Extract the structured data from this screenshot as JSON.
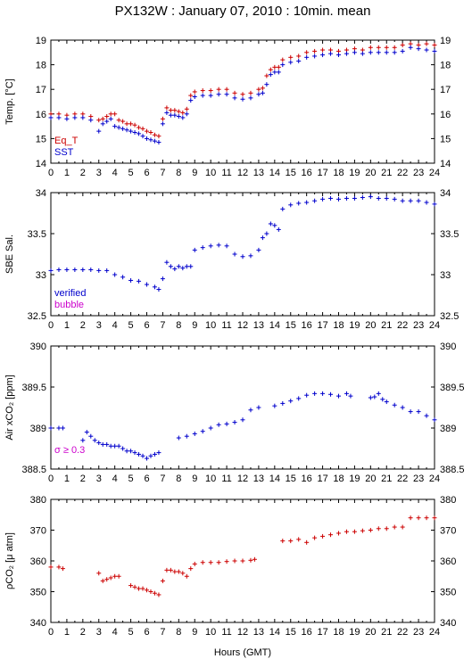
{
  "title": "PX132W : January 07, 2010 : 10min. mean",
  "x_axis_label": "Hours (GMT)",
  "colors": {
    "eq_t": "#cc0000",
    "sst": "#0000cc",
    "verified": "#0000cc",
    "bubble": "#cc00cc",
    "pco2": "#cc0000",
    "sigma": "#cc00cc"
  },
  "chart_data": [
    {
      "type": "scatter",
      "id": "temp",
      "ylabel": "Temp. [°C]",
      "xlim": [
        0,
        24
      ],
      "ylim": [
        14,
        19
      ],
      "yticks": [
        14,
        15,
        16,
        17,
        18,
        19
      ],
      "xticks": [
        0,
        1,
        2,
        3,
        4,
        5,
        6,
        7,
        8,
        9,
        10,
        11,
        12,
        13,
        14,
        15,
        16,
        17,
        18,
        19,
        20,
        21,
        22,
        23,
        24
      ],
      "legend": [
        "Eq_T",
        "SST"
      ],
      "legend_position": "bottom-left",
      "series": [
        {
          "name": "Eq_T",
          "color": "#cc0000",
          "x": [
            0.0,
            0.5,
            1.0,
            1.5,
            2.0,
            2.5,
            3.0,
            3.25,
            3.5,
            3.75,
            4.0,
            4.25,
            4.5,
            4.75,
            5.0,
            5.25,
            5.5,
            5.75,
            6.0,
            6.25,
            6.5,
            6.75,
            7.0,
            7.25,
            7.5,
            7.75,
            8.0,
            8.25,
            8.5,
            8.75,
            9.0,
            9.5,
            10.0,
            10.5,
            11.0,
            11.5,
            12.0,
            12.5,
            13.0,
            13.25,
            13.5,
            13.75,
            14.0,
            14.25,
            14.5,
            15.0,
            15.5,
            16.0,
            16.5,
            17.0,
            17.5,
            18.0,
            18.5,
            19.0,
            19.5,
            20.0,
            20.5,
            21.0,
            21.5,
            22.0,
            22.5,
            23.0,
            23.5,
            24.0
          ],
          "y": [
            16.0,
            16.0,
            15.95,
            16.0,
            16.0,
            15.9,
            15.75,
            15.8,
            15.9,
            16.0,
            16.0,
            15.75,
            15.7,
            15.6,
            15.6,
            15.55,
            15.45,
            15.4,
            15.3,
            15.25,
            15.15,
            15.1,
            15.8,
            16.25,
            16.15,
            16.15,
            16.1,
            16.05,
            16.2,
            16.75,
            16.9,
            16.95,
            16.95,
            17.0,
            17.0,
            16.85,
            16.8,
            16.85,
            17.0,
            17.05,
            17.55,
            17.8,
            17.9,
            17.9,
            18.2,
            18.3,
            18.35,
            18.5,
            18.55,
            18.6,
            18.6,
            18.55,
            18.6,
            18.65,
            18.6,
            18.7,
            18.7,
            18.7,
            18.7,
            18.8,
            18.85,
            18.8,
            18.85,
            18.8
          ]
        },
        {
          "name": "SST",
          "color": "#0000cc",
          "x": [
            0.0,
            0.5,
            1.0,
            1.5,
            2.0,
            2.5,
            3.0,
            3.25,
            3.5,
            3.75,
            4.0,
            4.25,
            4.5,
            4.75,
            5.0,
            5.25,
            5.5,
            5.75,
            6.0,
            6.25,
            6.5,
            6.75,
            7.0,
            7.25,
            7.5,
            7.75,
            8.0,
            8.25,
            8.5,
            8.75,
            9.0,
            9.5,
            10.0,
            10.5,
            11.0,
            11.5,
            12.0,
            12.5,
            13.0,
            13.25,
            13.5,
            13.75,
            14.0,
            14.25,
            14.5,
            15.0,
            15.5,
            16.0,
            16.5,
            17.0,
            17.5,
            18.0,
            18.5,
            19.0,
            19.5,
            20.0,
            20.5,
            21.0,
            21.5,
            22.0,
            22.5,
            23.0,
            23.5,
            24.0
          ],
          "y": [
            15.85,
            15.85,
            15.8,
            15.85,
            15.85,
            15.75,
            15.3,
            15.6,
            15.7,
            15.8,
            15.5,
            15.45,
            15.4,
            15.35,
            15.3,
            15.25,
            15.2,
            15.1,
            15.0,
            14.95,
            14.9,
            14.85,
            15.6,
            16.05,
            15.95,
            15.95,
            15.9,
            15.85,
            16.0,
            16.55,
            16.7,
            16.75,
            16.75,
            16.8,
            16.8,
            16.65,
            16.6,
            16.65,
            16.8,
            16.85,
            17.2,
            17.6,
            17.7,
            17.7,
            18.0,
            18.1,
            18.15,
            18.3,
            18.35,
            18.4,
            18.45,
            18.4,
            18.45,
            18.5,
            18.45,
            18.5,
            18.5,
            18.5,
            18.5,
            18.55,
            18.7,
            18.65,
            18.6,
            18.55
          ]
        }
      ]
    },
    {
      "type": "scatter",
      "id": "sal",
      "ylabel": "SBE Sal.",
      "xlim": [
        0,
        24
      ],
      "ylim": [
        32.5,
        34
      ],
      "yticks": [
        32.5,
        33,
        33.5,
        34
      ],
      "xticks": [
        0,
        1,
        2,
        3,
        4,
        5,
        6,
        7,
        8,
        9,
        10,
        11,
        12,
        13,
        14,
        15,
        16,
        17,
        18,
        19,
        20,
        21,
        22,
        23,
        24
      ],
      "legend": [
        "verified",
        "bubble"
      ],
      "legend_position": "bottom-left",
      "series": [
        {
          "name": "verified",
          "color": "#0000cc",
          "x": [
            0.0,
            0.5,
            1.0,
            1.5,
            2.0,
            2.5,
            3.0,
            3.5,
            4.0,
            4.5,
            5.0,
            5.5,
            6.0,
            6.5,
            6.75,
            7.0,
            7.25,
            7.5,
            7.75,
            8.0,
            8.25,
            8.5,
            8.75,
            9.0,
            9.5,
            10.0,
            10.5,
            11.0,
            11.5,
            12.0,
            12.5,
            13.0,
            13.25,
            13.5,
            13.75,
            14.0,
            14.25,
            14.5,
            15.0,
            15.5,
            16.0,
            16.5,
            17.0,
            17.5,
            18.0,
            18.5,
            19.0,
            19.5,
            20.0,
            20.5,
            21.0,
            21.5,
            22.0,
            22.5,
            23.0,
            23.5,
            24.0
          ],
          "y": [
            33.05,
            33.06,
            33.06,
            33.06,
            33.06,
            33.06,
            33.05,
            33.05,
            33.0,
            32.97,
            32.93,
            32.92,
            32.88,
            32.85,
            32.82,
            32.95,
            33.15,
            33.1,
            33.07,
            33.1,
            33.08,
            33.1,
            33.1,
            33.3,
            33.33,
            33.35,
            33.36,
            33.35,
            33.25,
            33.22,
            33.23,
            33.3,
            33.45,
            33.5,
            33.62,
            33.6,
            33.55,
            33.8,
            33.85,
            33.87,
            33.88,
            33.9,
            33.92,
            33.93,
            33.92,
            33.93,
            33.93,
            33.94,
            33.95,
            33.93,
            33.93,
            33.92,
            33.9,
            33.9,
            33.9,
            33.88,
            33.86
          ]
        },
        {
          "name": "bubble",
          "color": "#cc00cc",
          "x": [],
          "y": []
        }
      ]
    },
    {
      "type": "scatter",
      "id": "air",
      "ylabel": "Air xCO₂ [ppm]",
      "xlim": [
        0,
        24
      ],
      "ylim": [
        388.5,
        390
      ],
      "yticks": [
        388.5,
        389,
        389.5,
        390
      ],
      "xticks": [
        0,
        1,
        2,
        3,
        4,
        5,
        6,
        7,
        8,
        9,
        10,
        11,
        12,
        13,
        14,
        15,
        16,
        17,
        18,
        19,
        20,
        21,
        22,
        23,
        24
      ],
      "annotation": "σ ≥ 0.3",
      "series": [
        {
          "name": "Air xCO2",
          "color": "#0000cc",
          "x": [
            0.0,
            0.5,
            0.75,
            2.0,
            2.25,
            2.5,
            2.75,
            3.0,
            3.25,
            3.5,
            3.75,
            4.0,
            4.25,
            4.5,
            4.75,
            5.0,
            5.25,
            5.5,
            5.75,
            6.0,
            6.25,
            6.5,
            6.75,
            8.0,
            8.5,
            9.0,
            9.5,
            10.0,
            10.5,
            11.0,
            11.5,
            12.0,
            12.5,
            13.0,
            14.0,
            14.5,
            15.0,
            15.5,
            16.0,
            16.5,
            17.0,
            17.5,
            18.0,
            18.5,
            18.75,
            20.0,
            20.25,
            20.5,
            20.75,
            21.0,
            21.5,
            22.0,
            22.5,
            23.0,
            23.5,
            24.0
          ],
          "y": [
            389.0,
            389.0,
            389.0,
            388.85,
            388.95,
            388.9,
            388.85,
            388.82,
            388.8,
            388.8,
            388.78,
            388.78,
            388.78,
            388.75,
            388.72,
            388.72,
            388.7,
            388.68,
            388.66,
            388.63,
            388.66,
            388.68,
            388.7,
            388.88,
            388.9,
            388.93,
            388.96,
            389.0,
            389.04,
            389.05,
            389.07,
            389.1,
            389.22,
            389.25,
            389.27,
            389.3,
            389.33,
            389.36,
            389.4,
            389.42,
            389.42,
            389.41,
            389.39,
            389.42,
            389.39,
            389.37,
            389.38,
            389.42,
            389.35,
            389.32,
            389.28,
            389.25,
            389.2,
            389.2,
            389.15,
            389.1
          ]
        }
      ]
    },
    {
      "type": "scatter",
      "id": "pco2",
      "ylabel": "ρCO₂ [μ atm]",
      "xlim": [
        0,
        24
      ],
      "ylim": [
        340,
        380
      ],
      "yticks": [
        340,
        350,
        360,
        370,
        380
      ],
      "xticks": [
        0,
        1,
        2,
        3,
        4,
        5,
        6,
        7,
        8,
        9,
        10,
        11,
        12,
        13,
        14,
        15,
        16,
        17,
        18,
        19,
        20,
        21,
        22,
        23,
        24
      ],
      "series": [
        {
          "name": "pCO2",
          "color": "#cc0000",
          "x": [
            0.0,
            0.5,
            0.75,
            3.0,
            3.25,
            3.5,
            3.75,
            4.0,
            4.25,
            5.0,
            5.25,
            5.5,
            5.75,
            6.0,
            6.25,
            6.5,
            6.75,
            7.0,
            7.25,
            7.5,
            7.75,
            8.0,
            8.25,
            8.5,
            8.75,
            9.0,
            9.5,
            10.0,
            10.5,
            11.0,
            11.5,
            12.0,
            12.5,
            12.75,
            14.5,
            15.0,
            15.5,
            16.0,
            16.5,
            17.0,
            17.5,
            18.0,
            18.5,
            19.0,
            19.5,
            20.0,
            20.5,
            21.0,
            21.5,
            22.0,
            22.5,
            23.0,
            23.5,
            24.0
          ],
          "y": [
            358.0,
            358.0,
            357.5,
            356.0,
            353.5,
            354.0,
            354.5,
            355.0,
            355.0,
            352.0,
            351.5,
            351.0,
            351.0,
            350.5,
            350.0,
            349.5,
            349.0,
            353.5,
            357.0,
            357.0,
            356.5,
            356.5,
            356.0,
            355.0,
            357.5,
            359.0,
            359.5,
            359.5,
            359.5,
            359.8,
            360.0,
            360.0,
            360.2,
            360.5,
            366.5,
            366.5,
            367.0,
            366.0,
            367.5,
            368.0,
            368.5,
            369.0,
            369.5,
            369.5,
            369.8,
            370.0,
            370.5,
            370.5,
            371.0,
            371.0,
            374.0,
            374.0,
            374.0,
            374.0
          ]
        }
      ]
    }
  ]
}
